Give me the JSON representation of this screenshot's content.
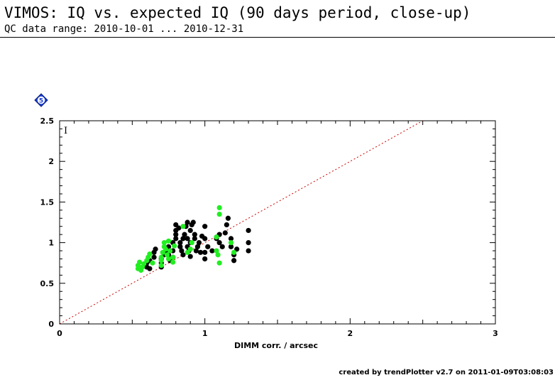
{
  "header": {
    "title": "VIMOS: IQ vs. expected IQ (90 days period, close-up)",
    "subtitle": "QC data range: 2010-10-01 ... 2010-12-31"
  },
  "badge": {
    "label": "5",
    "color": "#1a3fd0"
  },
  "footer": {
    "text": "created by trendPlotter v2.7 on 2011-01-09T03:08:03"
  },
  "chart_data": {
    "type": "scatter",
    "xlabel": "DIMM corr. / arcsec",
    "ylabel": "",
    "panel_label": "I",
    "xlim": [
      0,
      3
    ],
    "ylim": [
      0,
      2.5
    ],
    "xticks": [
      0,
      1,
      2,
      3
    ],
    "xtick_labels": [
      "0",
      "1",
      "2",
      "3"
    ],
    "yticks": [
      0,
      0.5,
      1,
      1.5,
      2,
      2.5
    ],
    "ytick_labels": [
      "0",
      "0.5",
      "1",
      "1.5",
      "2",
      "2.5"
    ],
    "reference_line": {
      "from": [
        0,
        0
      ],
      "to": [
        2.5,
        2.5
      ],
      "color": "#cc0000",
      "style": "dotted"
    },
    "series": [
      {
        "color": "#000000",
        "points": [
          [
            0.6,
            0.7
          ],
          [
            0.6,
            0.75
          ],
          [
            0.62,
            0.78
          ],
          [
            0.62,
            0.68
          ],
          [
            0.65,
            0.82
          ],
          [
            0.65,
            0.88
          ],
          [
            0.66,
            0.92
          ],
          [
            0.7,
            0.8
          ],
          [
            0.7,
            0.75
          ],
          [
            0.7,
            0.7
          ],
          [
            0.72,
            0.85
          ],
          [
            0.73,
            0.9
          ],
          [
            0.75,
            0.95
          ],
          [
            0.75,
            0.85
          ],
          [
            0.76,
            0.78
          ],
          [
            0.78,
            0.82
          ],
          [
            0.78,
            0.9
          ],
          [
            0.78,
            1.0
          ],
          [
            0.8,
            1.05
          ],
          [
            0.8,
            1.1
          ],
          [
            0.8,
            1.15
          ],
          [
            0.8,
            1.22
          ],
          [
            0.82,
            1.18
          ],
          [
            0.83,
            1.0
          ],
          [
            0.83,
            0.95
          ],
          [
            0.84,
            0.9
          ],
          [
            0.85,
            0.85
          ],
          [
            0.85,
            1.05
          ],
          [
            0.86,
            1.1
          ],
          [
            0.87,
            1.2
          ],
          [
            0.88,
            1.25
          ],
          [
            0.88,
            1.05
          ],
          [
            0.88,
            0.95
          ],
          [
            0.89,
            0.9
          ],
          [
            0.9,
            0.83
          ],
          [
            0.9,
            1.0
          ],
          [
            0.9,
            1.15
          ],
          [
            0.91,
            1.22
          ],
          [
            0.92,
            1.25
          ],
          [
            0.93,
            1.1
          ],
          [
            0.93,
            1.05
          ],
          [
            0.94,
            0.9
          ],
          [
            0.95,
            0.95
          ],
          [
            0.96,
            1.0
          ],
          [
            0.97,
            0.88
          ],
          [
            0.98,
            1.08
          ],
          [
            1.0,
            1.2
          ],
          [
            1.0,
            1.05
          ],
          [
            1.0,
            0.8
          ],
          [
            1.0,
            0.88
          ],
          [
            1.02,
            0.95
          ],
          [
            1.05,
            0.9
          ],
          [
            1.08,
            1.05
          ],
          [
            1.1,
            1.1
          ],
          [
            1.1,
            1.0
          ],
          [
            1.12,
            0.95
          ],
          [
            1.14,
            1.12
          ],
          [
            1.15,
            1.22
          ],
          [
            1.16,
            1.3
          ],
          [
            1.18,
            1.05
          ],
          [
            1.18,
            0.95
          ],
          [
            1.2,
            0.78
          ],
          [
            1.2,
            0.85
          ],
          [
            1.22,
            0.92
          ],
          [
            1.3,
            1.15
          ],
          [
            1.3,
            1.0
          ],
          [
            1.3,
            0.9
          ]
        ]
      },
      {
        "color": "#22ee22",
        "points": [
          [
            0.54,
            0.68
          ],
          [
            0.54,
            0.72
          ],
          [
            0.55,
            0.76
          ],
          [
            0.56,
            0.66
          ],
          [
            0.57,
            0.7
          ],
          [
            0.58,
            0.74
          ],
          [
            0.6,
            0.78
          ],
          [
            0.61,
            0.82
          ],
          [
            0.62,
            0.86
          ],
          [
            0.64,
            0.75
          ],
          [
            0.7,
            0.72
          ],
          [
            0.7,
            0.78
          ],
          [
            0.7,
            0.82
          ],
          [
            0.71,
            0.88
          ],
          [
            0.72,
            0.95
          ],
          [
            0.72,
            1.0
          ],
          [
            0.73,
            0.92
          ],
          [
            0.74,
            0.85
          ],
          [
            0.75,
            1.02
          ],
          [
            0.75,
            0.8
          ],
          [
            0.76,
            0.9
          ],
          [
            0.78,
            0.76
          ],
          [
            0.78,
            0.82
          ],
          [
            0.79,
            0.96
          ],
          [
            0.85,
            1.2
          ],
          [
            0.88,
            0.88
          ],
          [
            0.9,
            0.92
          ],
          [
            0.91,
            1.0
          ],
          [
            1.08,
            1.07
          ],
          [
            1.08,
            0.9
          ],
          [
            1.09,
            0.85
          ],
          [
            1.1,
            1.43
          ],
          [
            1.1,
            1.35
          ],
          [
            1.1,
            0.75
          ],
          [
            1.18,
            1.0
          ],
          [
            1.2,
            0.88
          ]
        ]
      }
    ]
  }
}
